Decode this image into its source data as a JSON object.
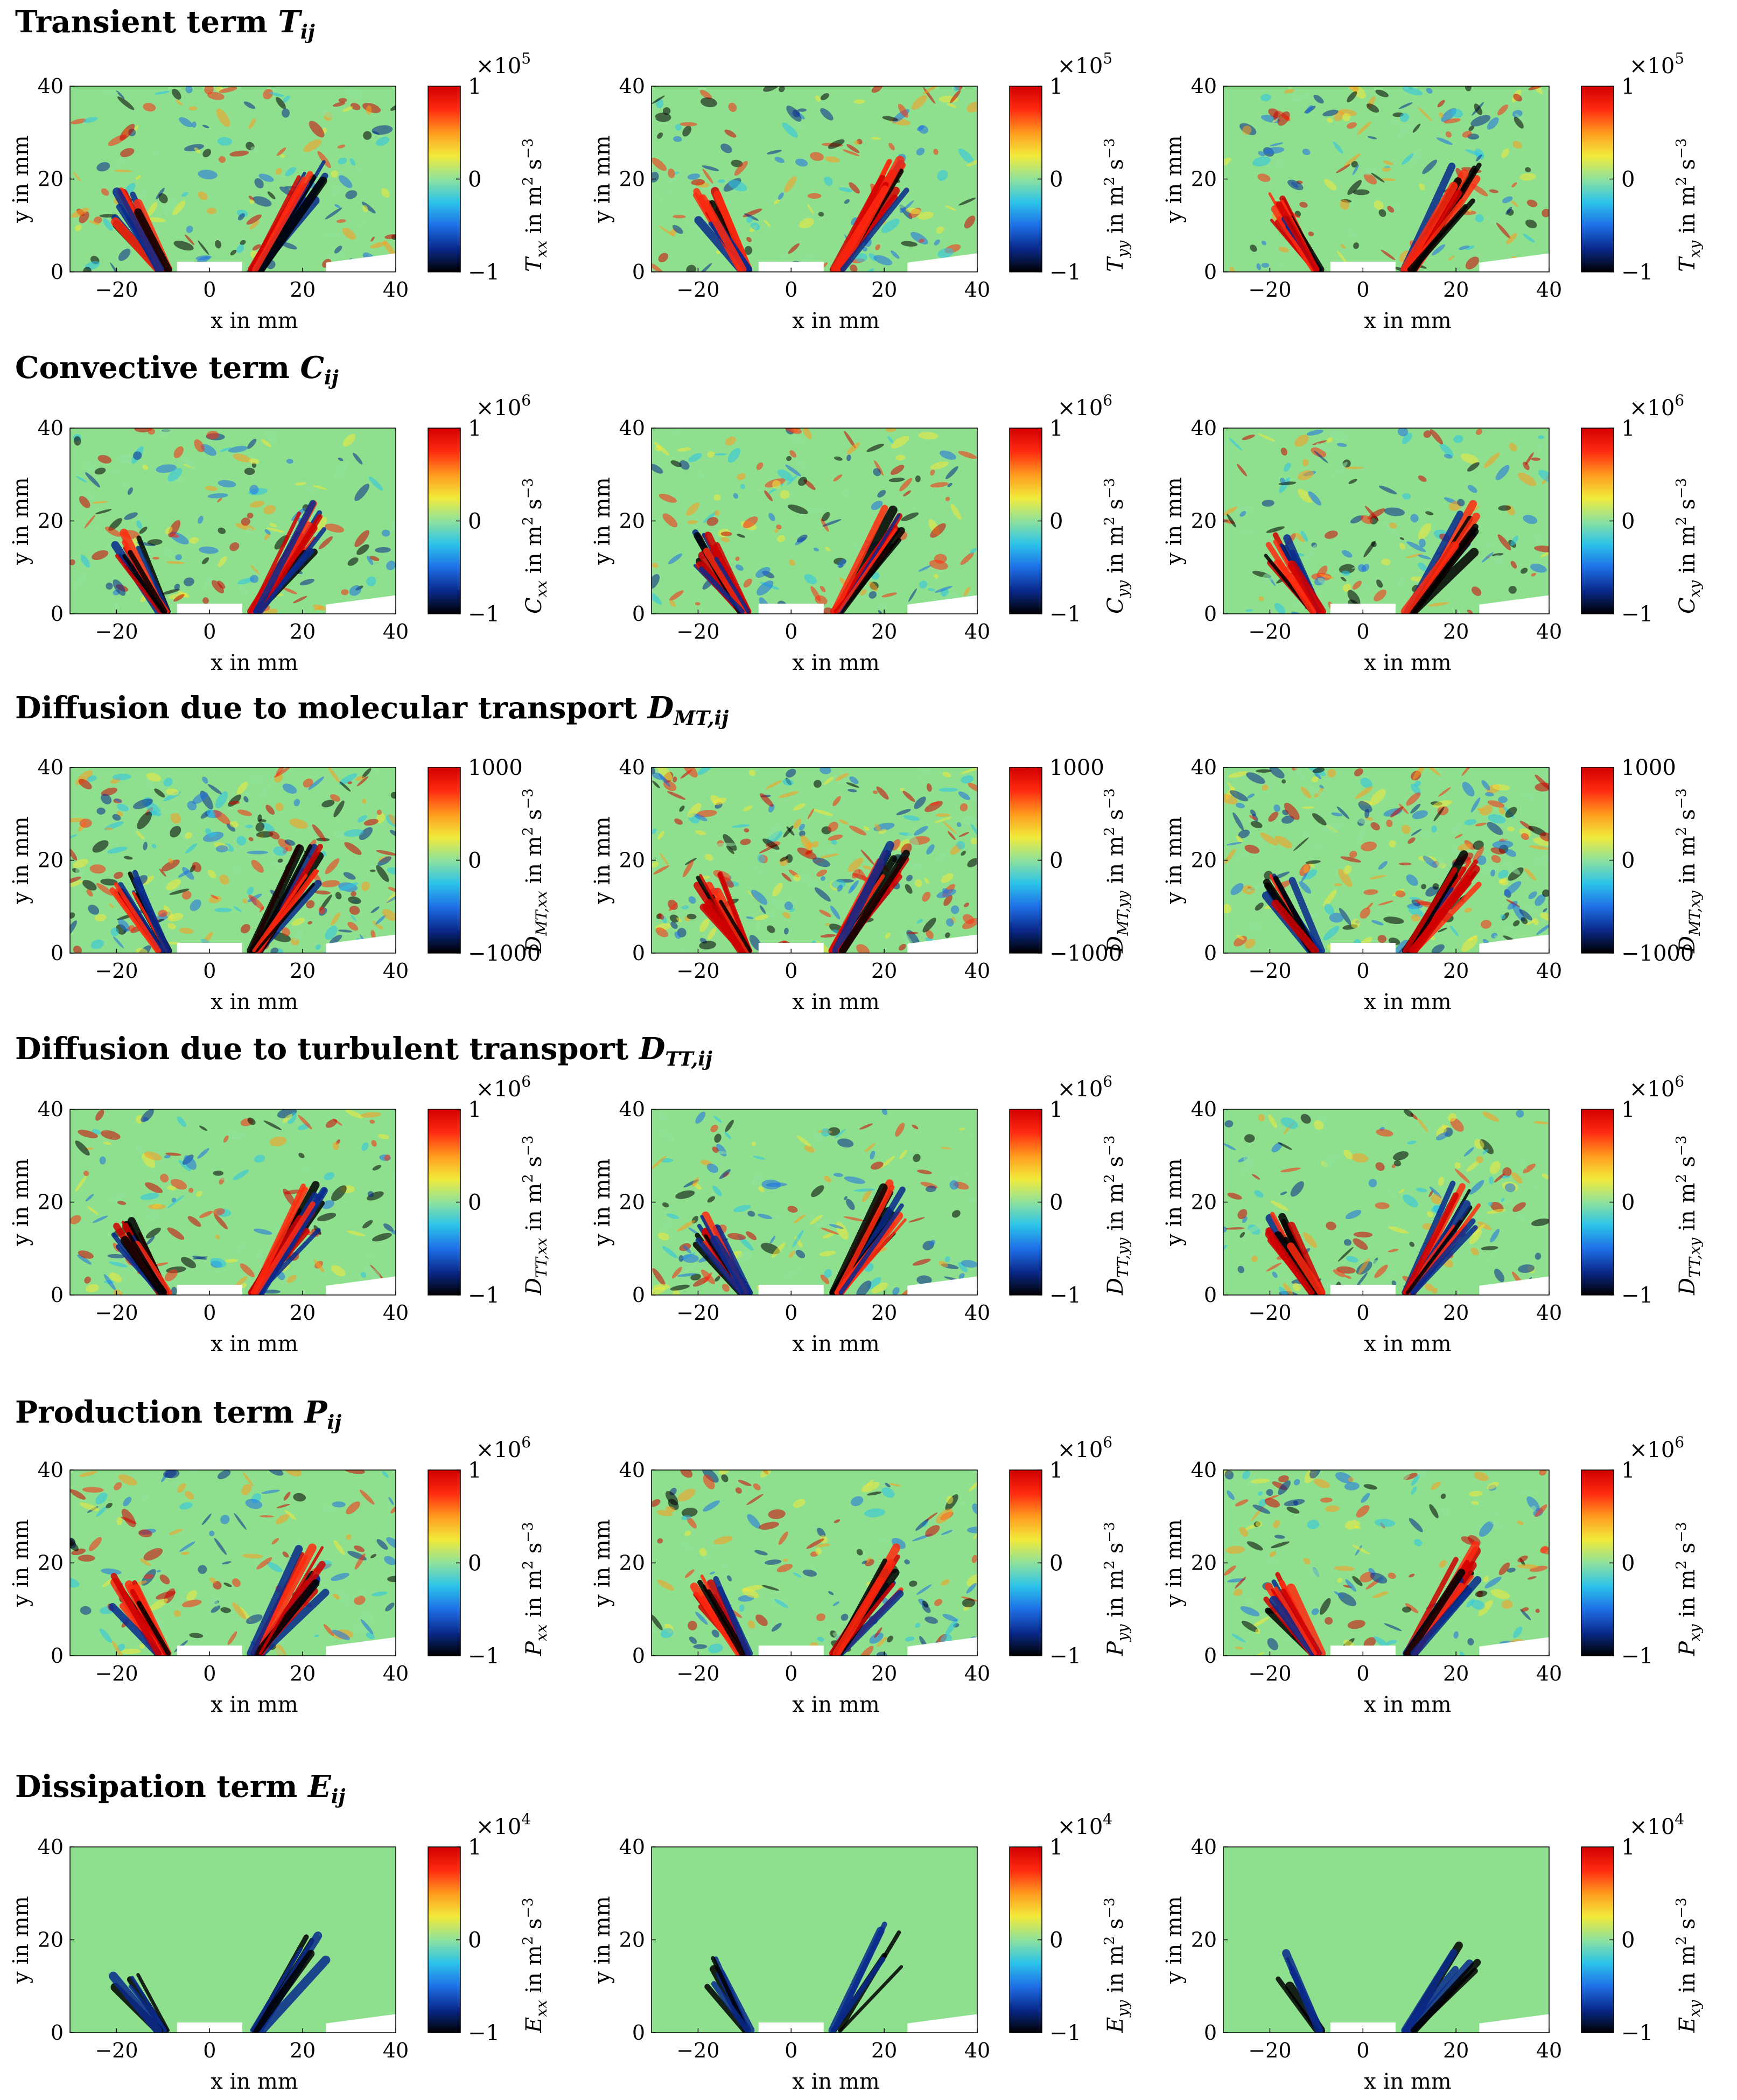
{
  "figure": {
    "sections": [
      {
        "title": "Transient term",
        "symbol": "T",
        "subscript": "ij"
      },
      {
        "title": "Convective term",
        "symbol": "C",
        "subscript": "ij"
      },
      {
        "title": "Diffusion due to molecular transport",
        "symbol": "D",
        "subscript": "MT,ij"
      },
      {
        "title": "Diffusion due to turbulent transport",
        "symbol": "D",
        "subscript": "TT,ij"
      },
      {
        "title": "Production term",
        "symbol": "P",
        "subscript": "ij"
      },
      {
        "title": "Dissipation term",
        "symbol": "E",
        "subscript": "ij"
      }
    ],
    "colorscale": [
      "#000000",
      "#0a2a8c",
      "#1e6fe6",
      "#2cc3ea",
      "#8fe29c",
      "#f2ea3a",
      "#ff9a1f",
      "#ff2a10",
      "#d00000"
    ],
    "background_value_color": "#8ee08e"
  },
  "chart_data": [
    {
      "type": "heatmap",
      "row": 0,
      "col": 0,
      "colorbar_label": "T_xx in m^2 s^-3",
      "quantity": "T",
      "component": "xx",
      "multiplier": "×10^5",
      "clim": [
        -1,
        1
      ],
      "cbar_ticks": [
        "1",
        "0",
        "−1"
      ],
      "xlim": [
        -30,
        40
      ],
      "ylim": [
        0,
        40
      ],
      "xticks": [
        -20,
        0,
        20,
        40
      ],
      "yticks": [
        0,
        20,
        40
      ],
      "xlabel": "x in mm",
      "ylabel": "y in mm",
      "grid": false
    },
    {
      "type": "heatmap",
      "row": 0,
      "col": 1,
      "colorbar_label": "T_yy in m^2 s^-3",
      "quantity": "T",
      "component": "yy",
      "multiplier": "×10^5",
      "clim": [
        -1,
        1
      ],
      "cbar_ticks": [
        "1",
        "0",
        "−1"
      ],
      "xlim": [
        -30,
        40
      ],
      "ylim": [
        0,
        40
      ],
      "xticks": [
        -20,
        0,
        20,
        40
      ],
      "yticks": [
        0,
        20,
        40
      ],
      "xlabel": "x in mm",
      "ylabel": "y in mm",
      "grid": false
    },
    {
      "type": "heatmap",
      "row": 0,
      "col": 2,
      "colorbar_label": "T_xy in m^2 s^-3",
      "quantity": "T",
      "component": "xy",
      "multiplier": "×10^5",
      "clim": [
        -1,
        1
      ],
      "cbar_ticks": [
        "1",
        "0",
        "−1"
      ],
      "xlim": [
        -30,
        40
      ],
      "ylim": [
        0,
        40
      ],
      "xticks": [
        -20,
        0,
        20,
        40
      ],
      "yticks": [
        0,
        20,
        40
      ],
      "xlabel": "x in mm",
      "ylabel": "y in mm",
      "grid": false
    },
    {
      "type": "heatmap",
      "row": 1,
      "col": 0,
      "colorbar_label": "C_xx in m^2 s^-3",
      "quantity": "C",
      "component": "xx",
      "multiplier": "×10^6",
      "clim": [
        -1,
        1
      ],
      "cbar_ticks": [
        "1",
        "0",
        "−1"
      ],
      "xlim": [
        -30,
        40
      ],
      "ylim": [
        0,
        40
      ],
      "xticks": [
        -20,
        0,
        20,
        40
      ],
      "yticks": [
        0,
        20,
        40
      ],
      "xlabel": "x in mm",
      "ylabel": "y in mm",
      "grid": false
    },
    {
      "type": "heatmap",
      "row": 1,
      "col": 1,
      "colorbar_label": "C_yy in m^2 s^-3",
      "quantity": "C",
      "component": "yy",
      "multiplier": "×10^6",
      "clim": [
        -1,
        1
      ],
      "cbar_ticks": [
        "1",
        "0",
        "−1"
      ],
      "xlim": [
        -30,
        40
      ],
      "ylim": [
        0,
        40
      ],
      "xticks": [
        -20,
        0,
        20,
        40
      ],
      "yticks": [
        0,
        20,
        40
      ],
      "xlabel": "x in mm",
      "ylabel": "y in mm",
      "grid": false
    },
    {
      "type": "heatmap",
      "row": 1,
      "col": 2,
      "colorbar_label": "C_xy in m^2 s^-3",
      "quantity": "C",
      "component": "xy",
      "multiplier": "×10^6",
      "clim": [
        -1,
        1
      ],
      "cbar_ticks": [
        "1",
        "0",
        "−1"
      ],
      "xlim": [
        -30,
        40
      ],
      "ylim": [
        0,
        40
      ],
      "xticks": [
        -20,
        0,
        20,
        40
      ],
      "yticks": [
        0,
        20,
        40
      ],
      "xlabel": "x in mm",
      "ylabel": "y in mm",
      "grid": false
    },
    {
      "type": "heatmap",
      "row": 2,
      "col": 0,
      "colorbar_label": "D_MT,xx in m^2 s^-3",
      "quantity": "D",
      "component": "MT,xx",
      "multiplier": "",
      "clim": [
        -1000,
        1000
      ],
      "cbar_ticks": [
        "1000",
        "0",
        "−1000"
      ],
      "xlim": [
        -30,
        40
      ],
      "ylim": [
        0,
        40
      ],
      "xticks": [
        -20,
        0,
        20,
        40
      ],
      "yticks": [
        0,
        20,
        40
      ],
      "xlabel": "x in mm",
      "ylabel": "y in mm",
      "grid": false
    },
    {
      "type": "heatmap",
      "row": 2,
      "col": 1,
      "colorbar_label": "D_MT,yy in m^2 s^-3",
      "quantity": "D",
      "component": "MT,yy",
      "multiplier": "",
      "clim": [
        -1000,
        1000
      ],
      "cbar_ticks": [
        "1000",
        "0",
        "−1000"
      ],
      "xlim": [
        -30,
        40
      ],
      "ylim": [
        0,
        40
      ],
      "xticks": [
        -20,
        0,
        20,
        40
      ],
      "yticks": [
        0,
        20,
        40
      ],
      "xlabel": "x in mm",
      "ylabel": "y in mm",
      "grid": false
    },
    {
      "type": "heatmap",
      "row": 2,
      "col": 2,
      "colorbar_label": "D_MT,xy in m^2 s^-3",
      "quantity": "D",
      "component": "MT,xy",
      "multiplier": "",
      "clim": [
        -1000,
        1000
      ],
      "cbar_ticks": [
        "1000",
        "0",
        "−1000"
      ],
      "xlim": [
        -30,
        40
      ],
      "ylim": [
        0,
        40
      ],
      "xticks": [
        -20,
        0,
        20,
        40
      ],
      "yticks": [
        0,
        20,
        40
      ],
      "xlabel": "x in mm",
      "ylabel": "y in mm",
      "grid": false
    },
    {
      "type": "heatmap",
      "row": 3,
      "col": 0,
      "colorbar_label": "D_TT,xx in m^2 s^-3",
      "quantity": "D",
      "component": "TT,xx",
      "multiplier": "×10^6",
      "clim": [
        -1,
        1
      ],
      "cbar_ticks": [
        "1",
        "0",
        "−1"
      ],
      "xlim": [
        -30,
        40
      ],
      "ylim": [
        0,
        40
      ],
      "xticks": [
        -20,
        0,
        20,
        40
      ],
      "yticks": [
        0,
        20,
        40
      ],
      "xlabel": "x in mm",
      "ylabel": "y in mm",
      "grid": false
    },
    {
      "type": "heatmap",
      "row": 3,
      "col": 1,
      "colorbar_label": "D_TT,yy in m^2 s^-3",
      "quantity": "D",
      "component": "TT,yy",
      "multiplier": "×10^6",
      "clim": [
        -1,
        1
      ],
      "cbar_ticks": [
        "1",
        "0",
        "−1"
      ],
      "xlim": [
        -30,
        40
      ],
      "ylim": [
        0,
        40
      ],
      "xticks": [
        -20,
        0,
        20,
        40
      ],
      "yticks": [
        0,
        20,
        40
      ],
      "xlabel": "x in mm",
      "ylabel": "y in mm",
      "grid": false
    },
    {
      "type": "heatmap",
      "row": 3,
      "col": 2,
      "colorbar_label": "D_TT,xy in m^2 s^-3",
      "quantity": "D",
      "component": "TT,xy",
      "multiplier": "×10^6",
      "clim": [
        -1,
        1
      ],
      "cbar_ticks": [
        "1",
        "0",
        "−1"
      ],
      "xlim": [
        -30,
        40
      ],
      "ylim": [
        0,
        40
      ],
      "xticks": [
        -20,
        0,
        20,
        40
      ],
      "yticks": [
        0,
        20,
        40
      ],
      "xlabel": "x in mm",
      "ylabel": "y in mm",
      "grid": false
    },
    {
      "type": "heatmap",
      "row": 4,
      "col": 0,
      "colorbar_label": "P_xx in m^2 s^-3",
      "quantity": "P",
      "component": "xx",
      "multiplier": "×10^6",
      "clim": [
        -1,
        1
      ],
      "cbar_ticks": [
        "1",
        "0",
        "−1"
      ],
      "xlim": [
        -30,
        40
      ],
      "ylim": [
        0,
        40
      ],
      "xticks": [
        -20,
        0,
        20,
        40
      ],
      "yticks": [
        0,
        20,
        40
      ],
      "xlabel": "x in mm",
      "ylabel": "y in mm",
      "grid": false
    },
    {
      "type": "heatmap",
      "row": 4,
      "col": 1,
      "colorbar_label": "P_yy in m^2 s^-3",
      "quantity": "P",
      "component": "yy",
      "multiplier": "×10^6",
      "clim": [
        -1,
        1
      ],
      "cbar_ticks": [
        "1",
        "0",
        "−1"
      ],
      "xlim": [
        -30,
        40
      ],
      "ylim": [
        0,
        40
      ],
      "xticks": [
        -20,
        0,
        20,
        40
      ],
      "yticks": [
        0,
        20,
        40
      ],
      "xlabel": "x in mm",
      "ylabel": "y in mm",
      "grid": false
    },
    {
      "type": "heatmap",
      "row": 4,
      "col": 2,
      "colorbar_label": "P_xy in m^2 s^-3",
      "quantity": "P",
      "component": "xy",
      "multiplier": "×10^6",
      "clim": [
        -1,
        1
      ],
      "cbar_ticks": [
        "1",
        "0",
        "−1"
      ],
      "xlim": [
        -30,
        40
      ],
      "ylim": [
        0,
        40
      ],
      "xticks": [
        -20,
        0,
        20,
        40
      ],
      "yticks": [
        0,
        20,
        40
      ],
      "xlabel": "x in mm",
      "ylabel": "y in mm",
      "grid": false
    },
    {
      "type": "heatmap",
      "row": 5,
      "col": 0,
      "colorbar_label": "E_xx in m^2 s^-3",
      "quantity": "E",
      "component": "xx",
      "multiplier": "×10^4",
      "clim": [
        -1,
        1
      ],
      "cbar_ticks": [
        "1",
        "0",
        "−1"
      ],
      "xlim": [
        -30,
        40
      ],
      "ylim": [
        0,
        40
      ],
      "xticks": [
        -20,
        0,
        20,
        40
      ],
      "yticks": [
        0,
        20,
        40
      ],
      "xlabel": "x in mm",
      "ylabel": "y in mm",
      "grid": false
    },
    {
      "type": "heatmap",
      "row": 5,
      "col": 1,
      "colorbar_label": "E_yy in m^2 s^-3",
      "quantity": "E",
      "component": "yy",
      "multiplier": "×10^4",
      "clim": [
        -1,
        1
      ],
      "cbar_ticks": [
        "1",
        "0",
        "−1"
      ],
      "xlim": [
        -30,
        40
      ],
      "ylim": [
        0,
        40
      ],
      "xticks": [
        -20,
        0,
        20,
        40
      ],
      "yticks": [
        0,
        20,
        40
      ],
      "xlabel": "x in mm",
      "ylabel": "y in mm",
      "grid": false
    },
    {
      "type": "heatmap",
      "row": 5,
      "col": 2,
      "colorbar_label": "E_xy in m^2 s^-3",
      "quantity": "E",
      "component": "xy",
      "multiplier": "×10^4",
      "clim": [
        -1,
        1
      ],
      "cbar_ticks": [
        "1",
        "0",
        "−1"
      ],
      "xlim": [
        -30,
        40
      ],
      "ylim": [
        0,
        40
      ],
      "xticks": [
        -20,
        0,
        20,
        40
      ],
      "yticks": [
        0,
        20,
        40
      ],
      "xlabel": "x in mm",
      "ylabel": "y in mm",
      "grid": false
    }
  ]
}
